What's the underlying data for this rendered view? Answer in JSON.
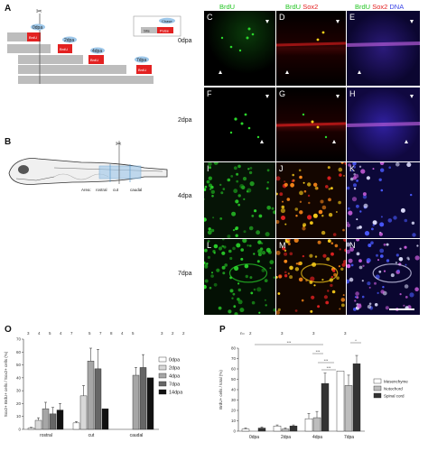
{
  "panelA": {
    "label": "A",
    "bubbles": [
      "0dpa",
      "2dpa",
      "4dpa",
      "7dpa"
    ],
    "boxes": [
      "BrdU",
      "BrdU",
      "BrdU",
      "BrdU"
    ],
    "legend": {
      "tag": "Chase",
      "site": "Site",
      "pulse": "Pulse"
    }
  },
  "panelB": {
    "label": "B",
    "areas": {
      "area": "Area:",
      "rostral": "rostral",
      "cut": "cut",
      "caudal": "caudal"
    }
  },
  "micro": {
    "headers": {
      "brdu": "BrdU",
      "sox2": "Sox2",
      "dna": "DNA"
    },
    "rows": [
      "0dpa",
      "2dpa",
      "4dpa",
      "7dpa"
    ],
    "letters": [
      "C",
      "D",
      "E",
      "F",
      "G",
      "H",
      "I",
      "J",
      "K",
      "L",
      "M",
      "N"
    ]
  },
  "panelO": {
    "label": "O",
    "n_row": [
      "3",
      "4",
      "5",
      "4",
      "7",
      "5",
      "7",
      "8",
      "4",
      "5",
      "3",
      "2",
      "2"
    ],
    "colors": {
      "0dpa": "#ffffff",
      "2dpa": "#d8d8d8",
      "4dpa": "#a6a6a6",
      "7dpa": "#666666",
      "14dpa": "#111111"
    },
    "chart_data": {
      "type": "bar",
      "title": "",
      "xlabel": "",
      "ylabel": "Sox2+ BrdU+ cells / Sox2+ cells (%)",
      "ylim": [
        0,
        70
      ],
      "yticks": [
        0,
        10,
        20,
        30,
        40,
        50,
        60,
        70
      ],
      "categories": [
        "rostral",
        "cut",
        "caudal"
      ],
      "series": [
        {
          "name": "0dpa",
          "values": [
            1,
            5,
            0
          ],
          "errors": [
            0.5,
            1,
            0
          ]
        },
        {
          "name": "2dpa",
          "values": [
            7,
            26,
            0
          ],
          "errors": [
            2,
            8,
            0
          ]
        },
        {
          "name": "4dpa",
          "values": [
            16,
            53,
            42
          ],
          "errors": [
            5,
            10,
            6
          ]
        },
        {
          "name": "7dpa",
          "values": [
            12,
            47,
            48
          ],
          "errors": [
            5,
            15,
            10
          ]
        },
        {
          "name": "14dpa",
          "values": [
            15,
            16,
            40
          ],
          "errors": [
            5,
            0,
            0
          ]
        }
      ]
    }
  },
  "panelP": {
    "label": "P",
    "n_label": "n=",
    "n_row": [
      "2",
      "3",
      "3",
      "3"
    ],
    "sig": [
      "***",
      "***",
      "***",
      "***",
      "*"
    ],
    "colors": {
      "Mesenchyme": "#ffffff",
      "Notochord": "#bdbdbd",
      "Spinal cord": "#333333"
    },
    "chart_data": {
      "type": "bar",
      "title": "",
      "xlabel": "",
      "ylabel": "BrdU+ cells / total (%)",
      "ylim": [
        0,
        80
      ],
      "yticks": [
        0,
        10,
        20,
        30,
        40,
        50,
        60,
        70,
        80
      ],
      "categories": [
        "0dpa",
        "2dpa",
        "4dpa",
        "7dpa"
      ],
      "series": [
        {
          "name": "Mesenchyme",
          "values": [
            2,
            5,
            12,
            58
          ],
          "errors": [
            1,
            1,
            5,
            0
          ]
        },
        {
          "name": "Notochord",
          "values": [
            0,
            2,
            13,
            44
          ],
          "errors": [
            0,
            1,
            6,
            10
          ]
        },
        {
          "name": "Spinal cord",
          "values": [
            3,
            5,
            46,
            65
          ],
          "errors": [
            1,
            1,
            10,
            8
          ]
        }
      ]
    }
  }
}
